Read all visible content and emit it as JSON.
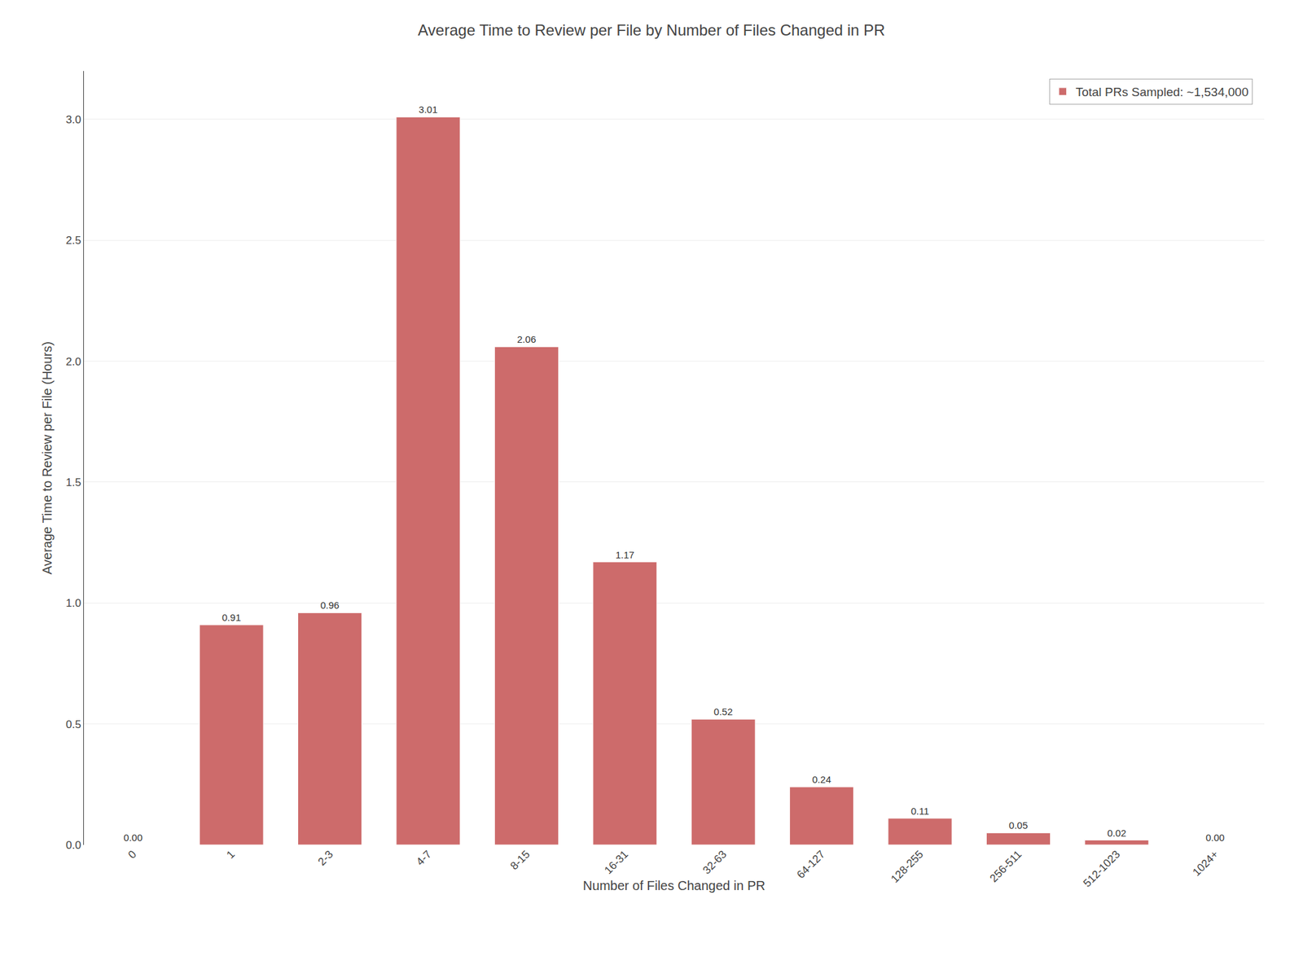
{
  "chart_data": {
    "type": "bar",
    "title": "Average Time to Review per File by Number of Files Changed in PR",
    "xlabel": "Number of Files Changed in PR",
    "ylabel": "Average Time to Review per File (Hours)",
    "categories": [
      "0",
      "1",
      "2-3",
      "4-7",
      "8-15",
      "16-31",
      "32-63",
      "64-127",
      "128-255",
      "256-511",
      "512-1023",
      "1024+"
    ],
    "series": [
      {
        "name": "Total PRs Sampled: ~1,534,000",
        "color": "#cd6b6b",
        "values": [
          0.0,
          0.91,
          0.96,
          3.01,
          2.06,
          1.17,
          0.52,
          0.24,
          0.11,
          0.05,
          0.02,
          0.0
        ],
        "value_labels": [
          "0.00",
          "0.91",
          "0.96",
          "3.01",
          "2.06",
          "1.17",
          "0.52",
          "0.24",
          "0.11",
          "0.05",
          "0.02",
          "0.00"
        ]
      }
    ],
    "ylim": [
      0,
      3.2
    ],
    "yticks": [
      {
        "value": 0.0,
        "label": "0.0"
      },
      0.5,
      {
        "value": 1.0,
        "label": "1.0"
      },
      1.5,
      {
        "value": 2.0,
        "label": "2.0"
      },
      2.5,
      {
        "value": 3.0,
        "label": "3.0"
      }
    ],
    "grid": true,
    "legend": "upper right",
    "data_labels": true
  }
}
